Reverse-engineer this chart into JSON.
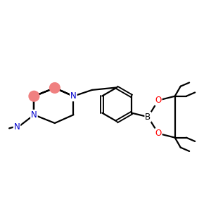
{
  "bg_color": "#ffffff",
  "bond_color": "#000000",
  "N_color": "#0000cd",
  "O_color": "#ff0000",
  "B_color": "#000000",
  "pink_circle_color": "#f08080",
  "line_width": 1.6,
  "font_size": 8.5,
  "figsize": [
    3.0,
    3.0
  ],
  "dpi": 100,
  "xlim": [
    0,
    10
  ],
  "ylim": [
    1,
    9
  ]
}
